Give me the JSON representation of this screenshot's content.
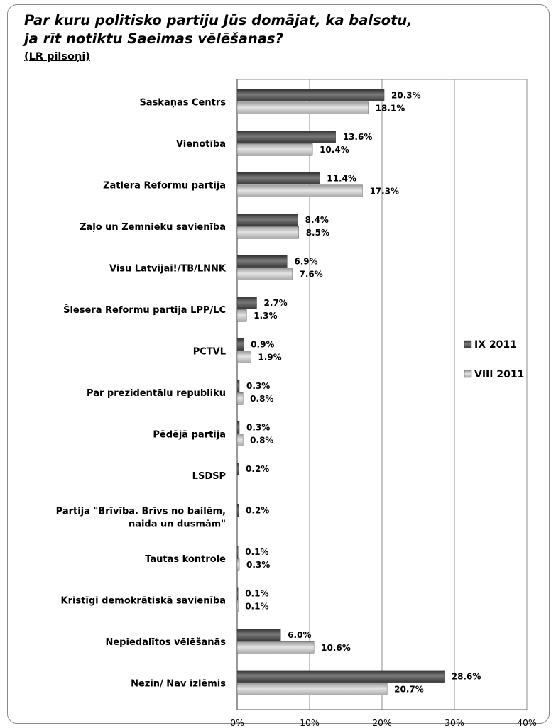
{
  "title_lines": [
    "Par kuru politisko partiju Jūs domājat, ka balsotu,",
    "ja rīt notiktu Saeimas vēlēšanas?"
  ],
  "subtitle": "(LR pilsoņi)",
  "chart_data": {
    "type": "bar",
    "orientation": "horizontal",
    "categories": [
      "Saskaņas Centrs",
      "Vienotība",
      "Zatlera Reformu partija",
      "Zaļo un Zemnieku savienība",
      "Visu Latvijai!/TB/LNNK",
      "Šlesera Reformu partija LPP/LC",
      "PCTVL",
      "Par prezidentālu republiku",
      "Pēdējā partija",
      "LSDSP",
      "Partija \"Brīvība. Brīvs no bailēm, naida un dusmām\"",
      "Tautas kontrole",
      "Kristīgi demokrātiskā savienība",
      "Nepiedalītos vēlēšanās",
      "Nezin/ Nav izlēmis"
    ],
    "category_lines": [
      [
        "Saskaņas Centrs"
      ],
      [
        "Vienotība"
      ],
      [
        "Zatlera Reformu partija"
      ],
      [
        "Zaļo un Zemnieku savienība"
      ],
      [
        "Visu Latvijai!/TB/LNNK"
      ],
      [
        "Šlesera Reformu partija LPP/LC"
      ],
      [
        "PCTVL"
      ],
      [
        "Par prezidentālu republiku"
      ],
      [
        "Pēdējā partija"
      ],
      [
        "LSDSP"
      ],
      [
        "Partija \"Brīvība. Brīvs no bailēm,",
        "naida un dusmām\""
      ],
      [
        "Tautas kontrole"
      ],
      [
        "Kristīgi demokrātiskā savienība"
      ],
      [
        "Nepiedalītos vēlēšanās"
      ],
      [
        "Nezin/ Nav izlēmis"
      ]
    ],
    "series": [
      {
        "name": "IX 2011",
        "color": "#555555",
        "values": [
          20.3,
          13.6,
          11.4,
          8.4,
          6.9,
          2.7,
          0.9,
          0.3,
          0.3,
          0.2,
          0.2,
          0.1,
          0.1,
          6.0,
          28.6
        ],
        "labels": [
          "20.3%",
          "13.6%",
          "11.4%",
          "8.4%",
          "6.9%",
          "2.7%",
          "0.9%",
          "0.3%",
          "0.3%",
          "0.2%",
          "0.2%",
          "0.1%",
          "0.1%",
          "6.0%",
          "28.6%"
        ]
      },
      {
        "name": "VIII 2011",
        "color": "#bdbdbd",
        "values": [
          18.1,
          10.4,
          17.3,
          8.5,
          7.6,
          1.3,
          1.9,
          0.8,
          0.8,
          null,
          null,
          0.3,
          0.1,
          10.6,
          20.7
        ],
        "labels": [
          "18.1%",
          "10.4%",
          "17.3%",
          "8.5%",
          "7.6%",
          "1.3%",
          "1.9%",
          "0.8%",
          "0.8%",
          null,
          null,
          "0.3%",
          "0.1%",
          "10.6%",
          "20.7%"
        ]
      }
    ],
    "xlim": [
      0,
      40
    ],
    "xticks": [
      0,
      10,
      20,
      30,
      40
    ],
    "xtick_labels": [
      "0%",
      "10%",
      "20%",
      "30%",
      "40%"
    ],
    "grid": "vertical",
    "legend_position": "right"
  }
}
